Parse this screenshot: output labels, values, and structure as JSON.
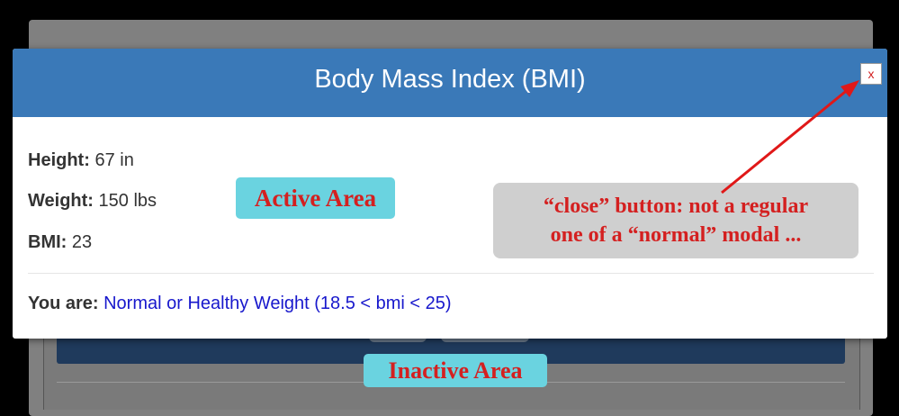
{
  "modal": {
    "title": "Body Mass Index (BMI)",
    "close_label": "x",
    "height": {
      "label": "Height:",
      "value": "67 in"
    },
    "weight": {
      "label": "Weight:",
      "value": "150 lbs"
    },
    "bmi": {
      "label": "BMI:",
      "value": "23"
    },
    "result": {
      "label": "You are:",
      "value": "Normal or Healthy Weight (18.5 < bmi < 25)"
    }
  },
  "annotations": {
    "active_area": "Active Area",
    "inactive_area": "Inactive Area",
    "callout_line1": "“close” button: not a regular",
    "callout_line2": "one of a “normal” modal ..."
  },
  "colors": {
    "header": "#3a79b8",
    "annotation_text": "#d42020",
    "tag_background": "#6ad3e0",
    "result_link": "#1818cc"
  }
}
